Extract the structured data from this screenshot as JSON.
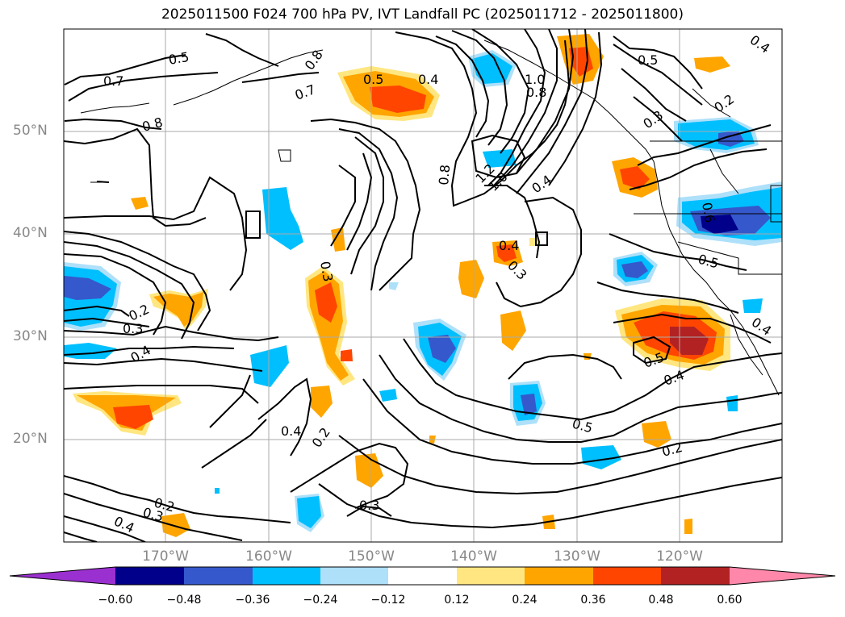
{
  "title": "2025011500 F024 700 hPa PV, IVT Landfall PC (2025011712 - 2025011800)",
  "lat_labels": [
    "50°N",
    "40°N",
    "30°N",
    "20°N"
  ],
  "lon_labels": [
    "170°W",
    "160°W",
    "150°W",
    "140°W",
    "130°W",
    "120°W"
  ],
  "colorbar": {
    "ticks": [
      "−0.60",
      "−0.48",
      "−0.36",
      "−0.24",
      "−0.12",
      "0.12",
      "0.24",
      "0.36",
      "0.48",
      "0.60"
    ],
    "colors": {
      "below": "#9b30d0",
      "neg060": "#00008b",
      "neg048": "#3558cc",
      "neg036": "#00bfff",
      "neg024": "#aee0fa",
      "neutral": "#ffffff",
      "pos012": "#ffe680",
      "pos024": "#ffa500",
      "pos036": "#ff4500",
      "pos048": "#b22222",
      "above": "#ff88aa"
    }
  },
  "contour_labels": [
    "0.5",
    "0.7",
    "0.8",
    "0.7",
    "0.5",
    "0.4",
    "0.8",
    "1.0",
    "0.8",
    "0.5",
    "0.3",
    "0.2",
    "0.4",
    "0.8",
    "1.2",
    "1.0",
    "0.4",
    "0.3",
    "0.3",
    "0.6",
    "0.5",
    "0.2",
    "0.3",
    "0.4",
    "0.4",
    "0.5",
    "0.4",
    "0.5",
    "0.2",
    "0.4",
    "0.2",
    "0.3",
    "0.2",
    "0.3",
    "0.4",
    "0.4"
  ]
}
